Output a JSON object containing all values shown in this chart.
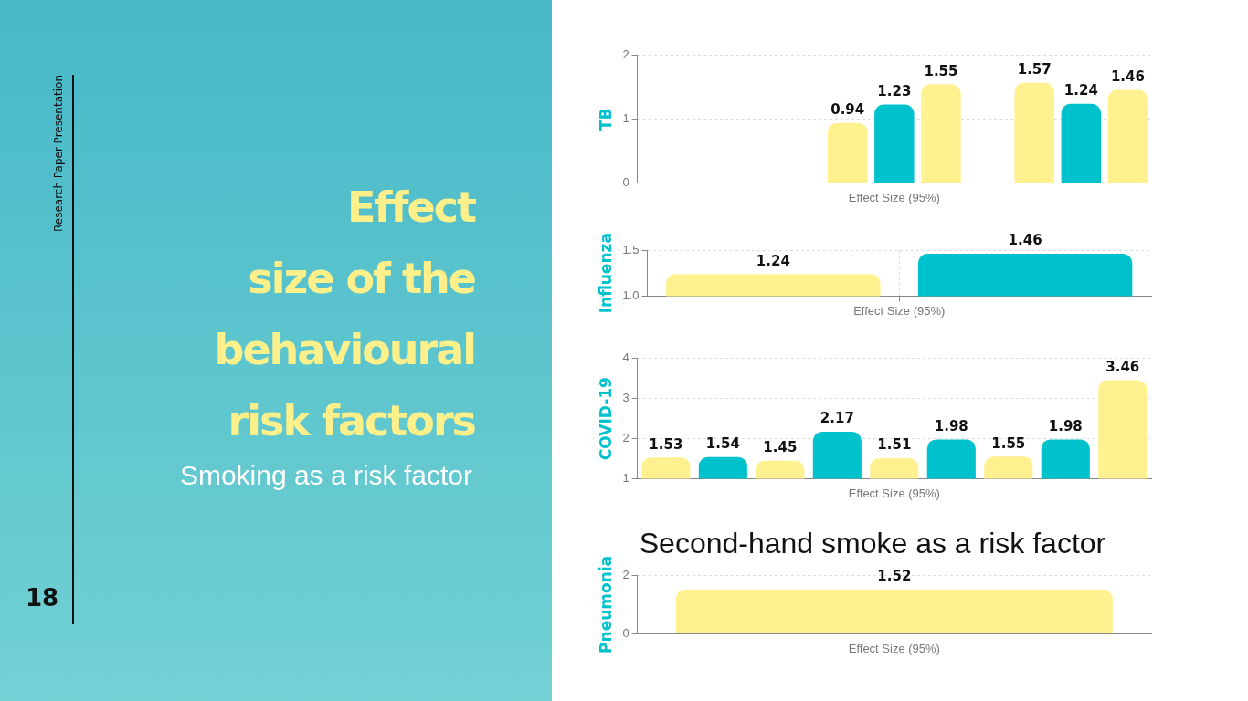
{
  "chart_data": [
    {
      "type": "bar",
      "title": "Effect\nsize of the\nbehavioural\nrisk factors",
      "subtitle": "Smoking as a risk factor",
      "annotations": [
        "Research Paper Presentation",
        "18"
      ],
      "ylabel": "TB",
      "categories": [
        "Effect Size (95%)"
      ],
      "series": [
        {
          "color": "#fff18f",
          "values": [
            null
          ]
        },
        {
          "color": "#00c2cc",
          "values": [
            null
          ]
        },
        {
          "color": "#fff18f",
          "values": [
            null
          ]
        },
        {
          "color": "#00c2cc",
          "values": [
            null
          ]
        },
        {
          "color": "#fff18f",
          "values": [
            0.94
          ]
        },
        {
          "color": "#00c2cc",
          "values": [
            1.23
          ]
        },
        {
          "color": "#fff18f",
          "values": [
            1.55
          ]
        },
        {
          "color": "#00c2cc",
          "values": [
            null
          ]
        },
        {
          "color": "#fff18f",
          "values": [
            1.57
          ]
        },
        {
          "color": "#00c2cc",
          "values": [
            1.24
          ]
        },
        {
          "color": "#fff18f",
          "values": [
            1.46
          ]
        }
      ],
      "ylim": [
        0,
        2
      ],
      "yticks": [
        0,
        1,
        2
      ],
      "grid": true,
      "legend": false,
      "data_labels": true
    },
    {
      "type": "bar",
      "ylabel": "Influenza",
      "categories": [
        "Effect Size (95%)"
      ],
      "series": [
        {
          "color": "#fff18f",
          "values": [
            1.24
          ]
        },
        {
          "color": "#00c2cc",
          "values": [
            1.46
          ]
        }
      ],
      "ylim": [
        1,
        1.5
      ],
      "yticks": [
        {
          "value": 1,
          "label": "1.0"
        },
        1.5
      ],
      "grid": true,
      "legend": false,
      "data_labels": true
    },
    {
      "type": "bar",
      "ylabel": "COVID-19",
      "categories": [
        "Effect Size (95%)"
      ],
      "series": [
        {
          "color": "#fff18f",
          "values": [
            1.53
          ]
        },
        {
          "color": "#00c2cc",
          "values": [
            1.54
          ]
        },
        {
          "color": "#fff18f",
          "values": [
            1.45
          ]
        },
        {
          "color": "#00c2cc",
          "values": [
            2.17
          ]
        },
        {
          "color": "#fff18f",
          "values": [
            1.51
          ]
        },
        {
          "color": "#00c2cc",
          "values": [
            1.98
          ]
        },
        {
          "color": "#fff18f",
          "values": [
            1.55
          ]
        },
        {
          "color": "#00c2cc",
          "values": [
            1.98
          ]
        },
        {
          "color": "#fff18f",
          "values": [
            3.46
          ]
        }
      ],
      "ylim": [
        1,
        4
      ],
      "yticks": [
        1,
        2,
        3,
        4
      ],
      "grid": true,
      "legend": false,
      "data_labels": true
    },
    {
      "type": "bar",
      "title": "Second-hand smoke as a risk factor",
      "ylabel": "Pneumonia",
      "categories": [
        "Effect Size (95%)"
      ],
      "series": [
        {
          "color": "#fff18f",
          "values": [
            1.52
          ]
        }
      ],
      "ylim": [
        0,
        2
      ],
      "yticks": [
        0,
        2
      ],
      "grid": true,
      "legend": false,
      "data_labels": true
    }
  ]
}
